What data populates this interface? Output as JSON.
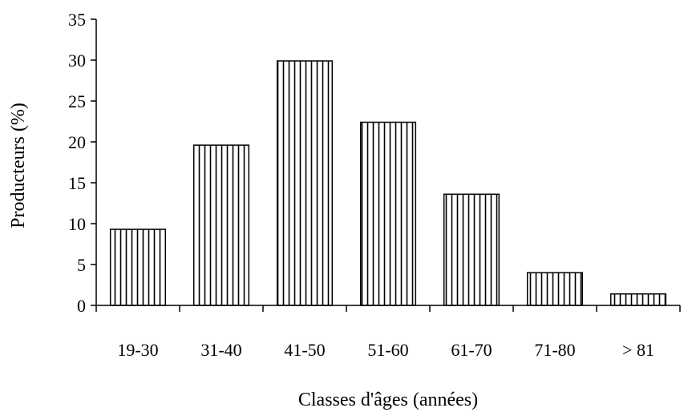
{
  "chart_data": {
    "type": "bar",
    "title": "",
    "xlabel": "Classes d'âges (années)",
    "ylabel": "Producteurs (%)",
    "categories": [
      "19-30",
      "31-40",
      "41-50",
      "51-60",
      "61-70",
      "71-80",
      "> 81"
    ],
    "values": [
      9.3,
      19.6,
      29.9,
      22.4,
      13.6,
      4.0,
      1.4
    ],
    "ylim": [
      0,
      35
    ],
    "yticks": [
      "0",
      "5",
      "10",
      "15",
      "20",
      "25",
      "30",
      "35"
    ],
    "grid": false,
    "legend": "none",
    "bar_pattern": "vertical-stripes",
    "colors": {
      "bar_fill": "#ffffff",
      "stripe": "#000000",
      "axis": "#000000"
    }
  }
}
